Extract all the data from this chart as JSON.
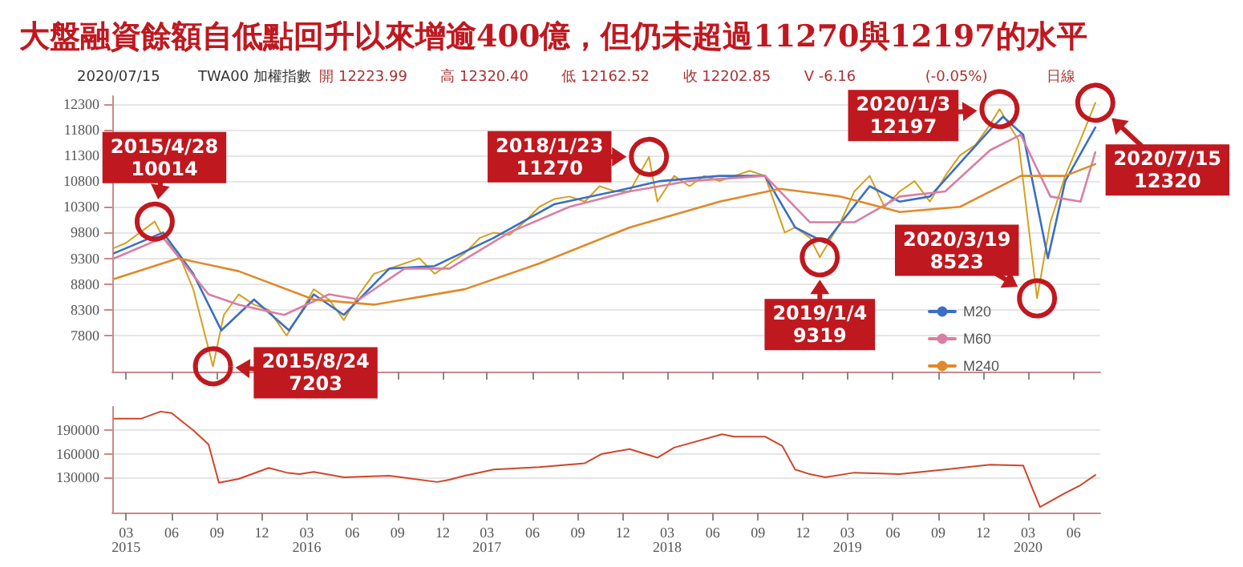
{
  "chart_data": [
    {
      "type": "line",
      "title": "大盤融資餘額自低點回升以來增逾400億，但仍未超過11270與12197的水平",
      "xlim": [
        "2015-02-01",
        "2020-07-25"
      ],
      "ylim": [
        7100,
        12450
      ],
      "yticks": [
        7800,
        8300,
        8800,
        9300,
        9800,
        10300,
        10800,
        11300,
        11800,
        12300
      ],
      "xticks": [
        {
          "value": "2015-03-01",
          "label": null
        },
        {
          "value": "2015-06-01",
          "label": null
        },
        {
          "value": "2015-09-01",
          "label": null
        },
        {
          "value": "2015-12-01",
          "label": null
        },
        {
          "value": "2016-03-01",
          "label": null
        },
        {
          "value": "2016-06-01",
          "label": null
        },
        {
          "value": "2016-09-01",
          "label": null
        },
        {
          "value": "2016-12-01",
          "label": null
        },
        {
          "value": "2017-03-01",
          "label": null
        },
        {
          "value": "2017-06-01",
          "label": null
        },
        {
          "value": "2017-09-01",
          "label": null
        },
        {
          "value": "2017-12-01",
          "label": null
        },
        {
          "value": "2018-03-01",
          "label": null
        },
        {
          "value": "2018-06-01",
          "label": null
        },
        {
          "value": "2018-09-01",
          "label": null
        },
        {
          "value": "2018-12-01",
          "label": null
        },
        {
          "value": "2019-03-01",
          "label": null
        },
        {
          "value": "2019-06-01",
          "label": null
        },
        {
          "value": "2019-09-01",
          "label": null
        },
        {
          "value": "2019-12-01",
          "label": null
        },
        {
          "value": "2020-03-01",
          "label": null
        },
        {
          "value": "2020-06-01",
          "label": null
        }
      ],
      "tick_labels": "y",
      "grid": "y",
      "legend": "bottom right",
      "marker": "none",
      "line_style": "solid",
      "series": [
        {
          "color": "#d4a020",
          "x": [
            "2015-02-05",
            "2015-03-01",
            "2015-04-28",
            "2015-05-15",
            "2015-06-15",
            "2015-07-15",
            "2015-08-24",
            "2015-09-15",
            "2015-10-15",
            "2015-11-15",
            "2015-12-15",
            "2016-01-20",
            "2016-02-15",
            "2016-03-15",
            "2016-04-15",
            "2016-05-15",
            "2016-06-15",
            "2016-07-15",
            "2016-08-15",
            "2016-09-15",
            "2016-10-15",
            "2016-11-15",
            "2016-12-15",
            "2017-01-15",
            "2017-02-15",
            "2017-03-15",
            "2017-04-15",
            "2017-05-15",
            "2017-06-15",
            "2017-07-15",
            "2017-08-15",
            "2017-09-15",
            "2017-10-15",
            "2017-11-15",
            "2017-12-15",
            "2018-01-23",
            "2018-02-09",
            "2018-03-15",
            "2018-04-15",
            "2018-05-15",
            "2018-06-15",
            "2018-07-15",
            "2018-08-15",
            "2018-09-15",
            "2018-10-25",
            "2018-11-15",
            "2018-12-15",
            "2019-01-04",
            "2019-02-15",
            "2019-03-15",
            "2019-04-15",
            "2019-05-15",
            "2019-06-15",
            "2019-07-15",
            "2019-08-15",
            "2019-09-15",
            "2019-10-15",
            "2019-11-15",
            "2019-12-15",
            "2020-01-03",
            "2020-02-10",
            "2020-03-19",
            "2020-04-15",
            "2020-05-15",
            "2020-06-15",
            "2020-07-15"
          ],
          "values": [
            9500,
            9600,
            10014,
            9700,
            9400,
            8700,
            7203,
            8200,
            8600,
            8400,
            8300,
            7800,
            8200,
            8700,
            8500,
            8100,
            8600,
            9000,
            9100,
            9200,
            9300,
            9000,
            9200,
            9400,
            9700,
            9800,
            9750,
            10000,
            10300,
            10450,
            10500,
            10400,
            10700,
            10600,
            10600,
            11270,
            10400,
            10900,
            10700,
            10900,
            10800,
            10900,
            11000,
            10900,
            9800,
            9900,
            9700,
            9319,
            10000,
            10600,
            10900,
            10300,
            10600,
            10800,
            10400,
            10900,
            11300,
            11500,
            11900,
            12197,
            11600,
            8523,
            10000,
            10900,
            11600,
            12320
          ]
        },
        {
          "name": "M20",
          "color": "#3a6fc4",
          "x": [
            "2015-02-05",
            "2015-05-15",
            "2015-07-15",
            "2015-09-10",
            "2015-11-15",
            "2016-01-25",
            "2016-03-15",
            "2016-05-15",
            "2016-08-15",
            "2016-11-15",
            "2017-03-15",
            "2017-07-15",
            "2017-11-15",
            "2018-02-15",
            "2018-06-15",
            "2018-09-15",
            "2018-11-15",
            "2019-01-15",
            "2019-04-15",
            "2019-06-15",
            "2019-08-15",
            "2019-12-15",
            "2020-01-10",
            "2020-02-20",
            "2020-04-10",
            "2020-05-15",
            "2020-07-15"
          ],
          "values": [
            9400,
            9800,
            9000,
            7900,
            8500,
            7900,
            8600,
            8200,
            9100,
            9150,
            9700,
            10350,
            10600,
            10800,
            10900,
            10900,
            9900,
            9600,
            10700,
            10400,
            10500,
            11800,
            12050,
            11700,
            9300,
            10800,
            11840
          ]
        },
        {
          "name": "M60",
          "color": "#d97fa6",
          "x": [
            "2015-02-05",
            "2015-05-15",
            "2015-08-15",
            "2015-10-15",
            "2016-01-15",
            "2016-04-15",
            "2016-06-15",
            "2016-09-15",
            "2016-12-15",
            "2017-04-15",
            "2017-08-15",
            "2017-12-15",
            "2018-04-15",
            "2018-09-15",
            "2018-12-15",
            "2019-03-15",
            "2019-06-15",
            "2019-09-15",
            "2019-12-15",
            "2020-02-15",
            "2020-04-15",
            "2020-06-15",
            "2020-07-15"
          ],
          "values": [
            9300,
            9700,
            8600,
            8400,
            8200,
            8600,
            8500,
            9100,
            9100,
            9800,
            10300,
            10600,
            10800,
            10900,
            10000,
            10000,
            10500,
            10600,
            11400,
            11700,
            10500,
            10400,
            11360
          ]
        },
        {
          "name": "M240",
          "color": "#e0892a",
          "x": [
            "2015-02-05",
            "2015-06-15",
            "2015-10-15",
            "2016-03-15",
            "2016-07-15",
            "2017-01-15",
            "2017-06-15",
            "2017-12-15",
            "2018-06-15",
            "2018-10-15",
            "2019-02-15",
            "2019-06-15",
            "2019-10-15",
            "2020-02-15",
            "2020-05-15",
            "2020-07-15"
          ],
          "values": [
            8900,
            9300,
            9050,
            8500,
            8400,
            8700,
            9200,
            9900,
            10400,
            10650,
            10500,
            10200,
            10300,
            10900,
            10900,
            11130
          ]
        }
      ],
      "annotations": [
        "2020/07/15",
        "TWA00 加權指數",
        "開 12223.99",
        "高 12320.40",
        "低 12162.52",
        "收 12202.85",
        "V -6.16",
        "(-0.05%)",
        "日線",
        {
          "text": "2015/4/28\n10014",
          "x": "2015-04-28",
          "y": 10014
        },
        {
          "text": "2015/8/24\n7203",
          "x": "2015-08-24",
          "y": 7203
        },
        {
          "text": "2018/1/23\n11270",
          "x": "2018-01-23",
          "y": 11270
        },
        {
          "text": "2019/1/4\n9319",
          "x": "2019-01-04",
          "y": 9319
        },
        {
          "text": "2020/1/3\n12197",
          "x": "2020-01-03",
          "y": 12197
        },
        {
          "text": "2020/3/19\n8523",
          "x": "2020-03-19",
          "y": 8523
        },
        {
          "text": "2020/7/15\n12320",
          "x": "2020-07-15",
          "y": 12320
        }
      ]
    },
    {
      "type": "line",
      "xlim": [
        "2015-02-01",
        "2020-07-25"
      ],
      "ylim": [
        85000,
        220000
      ],
      "yticks": [
        130000,
        160000,
        190000
      ],
      "grid": "y",
      "marker": "none",
      "line_style": "solid",
      "xticks": [
        {
          "value": "2015-03-01",
          "label": "03\n2015"
        },
        {
          "value": "2015-06-01",
          "label": "06"
        },
        {
          "value": "2015-09-01",
          "label": "09"
        },
        {
          "value": "2015-12-01",
          "label": "12"
        },
        {
          "value": "2016-03-01",
          "label": "03\n2016"
        },
        {
          "value": "2016-06-01",
          "label": "06"
        },
        {
          "value": "2016-09-01",
          "label": "09"
        },
        {
          "value": "2016-12-01",
          "label": "12"
        },
        {
          "value": "2017-03-01",
          "label": "03\n2017"
        },
        {
          "value": "2017-06-01",
          "label": "06"
        },
        {
          "value": "2017-09-01",
          "label": "09"
        },
        {
          "value": "2017-12-01",
          "label": "12"
        },
        {
          "value": "2018-03-01",
          "label": "03\n2018"
        },
        {
          "value": "2018-06-01",
          "label": "06"
        },
        {
          "value": "2018-09-01",
          "label": "09"
        },
        {
          "value": "2018-12-01",
          "label": "12"
        },
        {
          "value": "2019-03-01",
          "label": "03\n2019"
        },
        {
          "value": "2019-06-01",
          "label": "06"
        },
        {
          "value": "2019-09-01",
          "label": "09"
        },
        {
          "value": "2019-12-01",
          "label": "12"
        },
        {
          "value": "2020-03-01",
          "label": "03\n2020"
        },
        {
          "value": "2020-06-01",
          "label": "06"
        }
      ],
      "series": [
        {
          "color": "#d0452a",
          "x": [
            "2015-02-05",
            "2015-04-01",
            "2015-05-10",
            "2015-06-01",
            "2015-07-15",
            "2015-08-15",
            "2015-09-05",
            "2015-10-15",
            "2015-12-15",
            "2016-01-20",
            "2016-02-15",
            "2016-03-15",
            "2016-05-15",
            "2016-08-15",
            "2016-11-20",
            "2016-12-15",
            "2017-01-15",
            "2017-03-15",
            "2017-06-15",
            "2017-09-15",
            "2017-10-20",
            "2017-12-15",
            "2018-02-09",
            "2018-03-15",
            "2018-06-20",
            "2018-07-15",
            "2018-09-15",
            "2018-10-20",
            "2018-11-15",
            "2018-12-15",
            "2019-01-15",
            "2019-03-15",
            "2019-06-15",
            "2019-09-15",
            "2019-12-15",
            "2020-02-20",
            "2020-03-10",
            "2020-03-25",
            "2020-05-15",
            "2020-06-15",
            "2020-07-15"
          ],
          "values": [
            205000,
            205000,
            214000,
            212000,
            190000,
            172000,
            123000,
            128000,
            142000,
            136000,
            134000,
            137000,
            130000,
            132000,
            124000,
            127000,
            132000,
            140000,
            143000,
            148000,
            160000,
            166000,
            155000,
            168000,
            185000,
            182000,
            182000,
            170000,
            140000,
            134000,
            130000,
            136000,
            134000,
            140000,
            146000,
            145000,
            115000,
            92000,
            110000,
            120000,
            133000
          ]
        }
      ]
    }
  ]
}
